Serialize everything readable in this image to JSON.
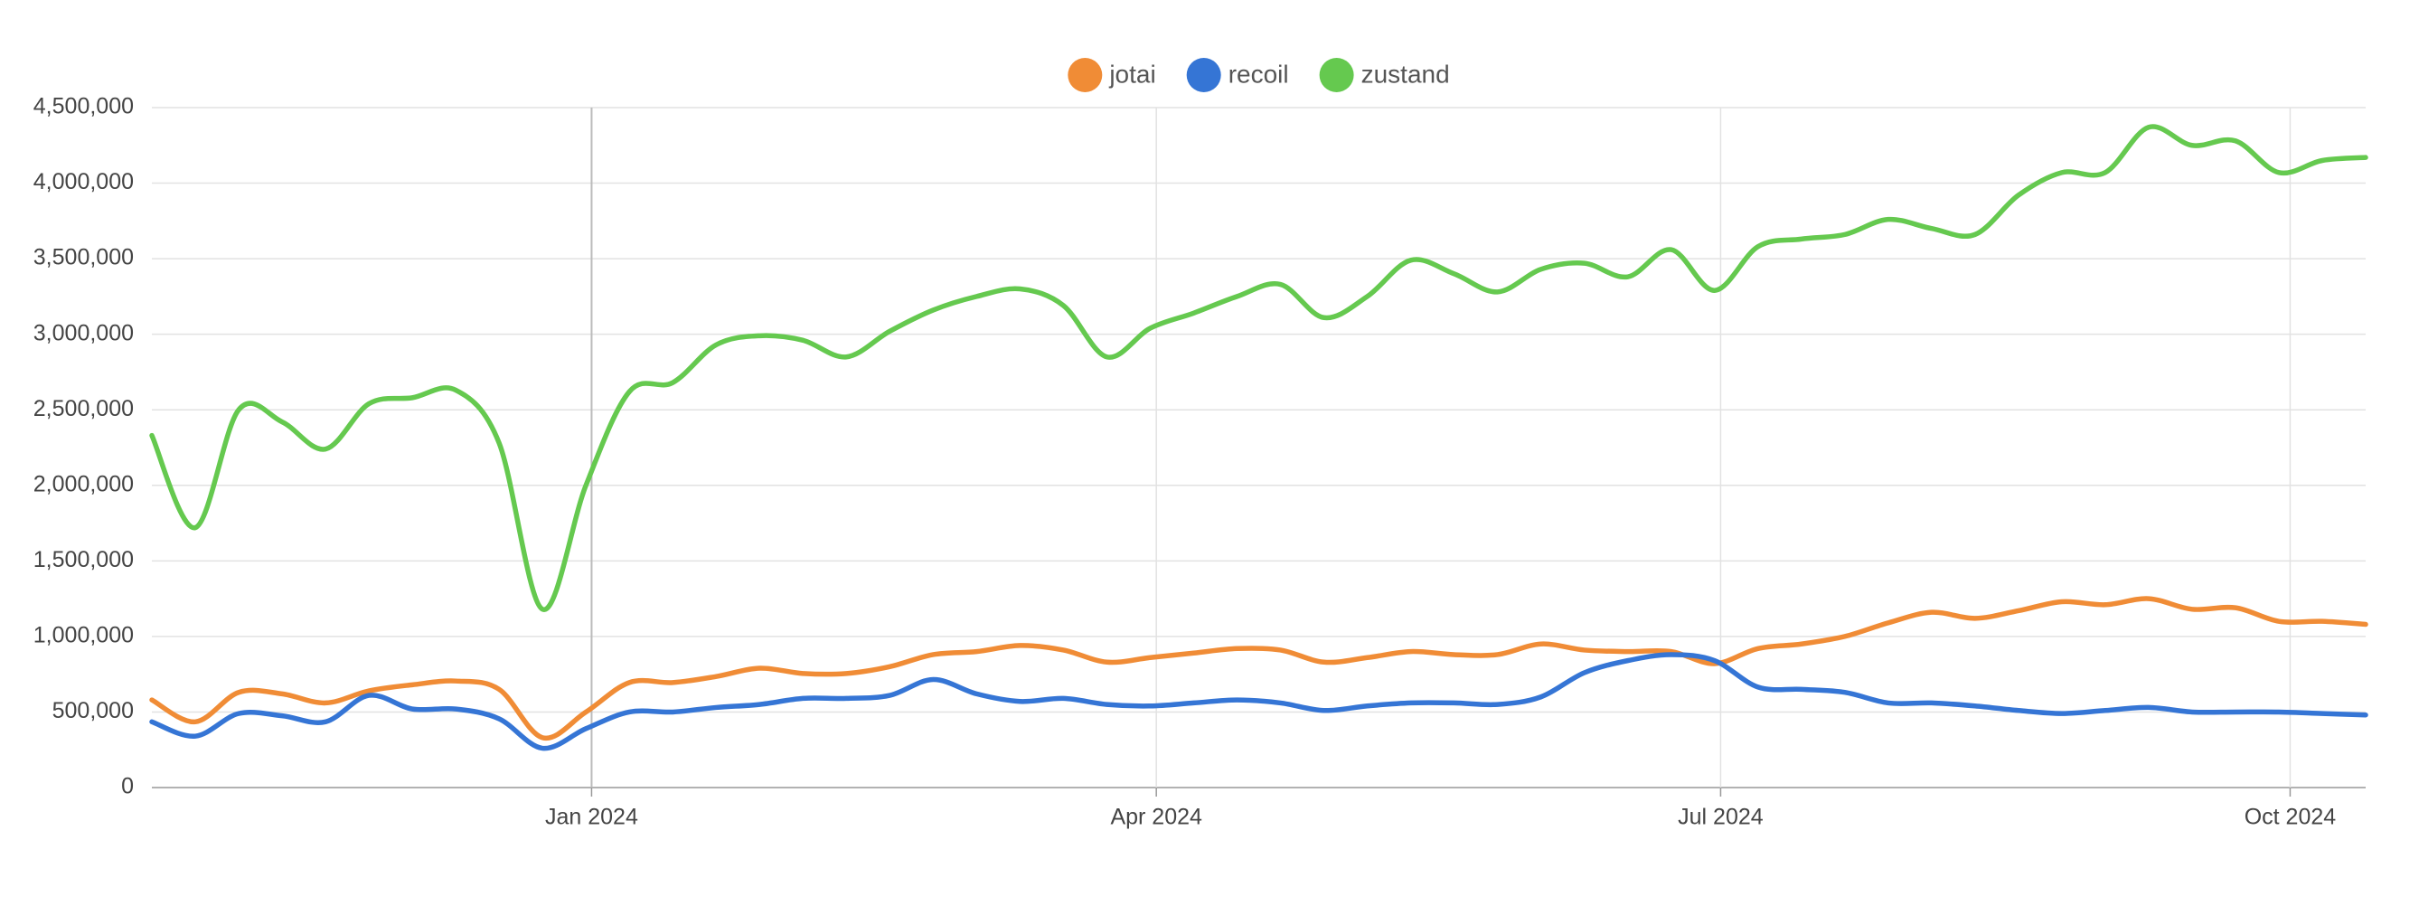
{
  "chart_data": {
    "type": "line",
    "x": [
      0,
      1,
      2,
      3,
      4,
      5,
      6,
      7,
      8,
      9,
      10,
      11,
      12,
      13,
      14,
      15,
      16,
      17,
      18,
      19,
      20,
      21,
      22,
      23,
      24,
      25,
      26,
      27,
      28,
      29,
      30,
      31,
      32,
      33,
      34,
      35,
      36,
      37,
      38,
      39,
      40,
      41,
      42,
      43,
      44,
      45,
      46,
      47,
      48,
      49,
      50,
      51
    ],
    "xlim": [
      0,
      51
    ],
    "xticks": [
      {
        "value": 10.13,
        "label": "Jan 2024"
      },
      {
        "value": 23.14,
        "label": "Apr 2024"
      },
      {
        "value": 36.14,
        "label": "Jul 2024"
      },
      {
        "value": 49.26,
        "label": "Oct 2024"
      }
    ],
    "ylim": [
      0,
      4500000
    ],
    "yticks": [
      0,
      {
        "value": 500000,
        "label": "500,000"
      },
      {
        "value": 1000000,
        "label": "1,000,000"
      },
      {
        "value": 1500000,
        "label": "1,500,000"
      },
      {
        "value": 2000000,
        "label": "2,000,000"
      },
      {
        "value": 2500000,
        "label": "2,500,000"
      },
      {
        "value": 3000000,
        "label": "3,000,000"
      },
      {
        "value": 3500000,
        "label": "3,500,000"
      },
      {
        "value": 4000000,
        "label": "4,000,000"
      },
      {
        "value": 4500000,
        "label": "4,500,000"
      }
    ],
    "grid": true,
    "legend": "top",
    "series": [
      {
        "name": "jotai",
        "color": "#f08c36",
        "values": [
          580000,
          435000,
          630000,
          620000,
          560000,
          640000,
          680000,
          705000,
          650000,
          330000,
          500000,
          695000,
          695000,
          735000,
          790000,
          755000,
          755000,
          800000,
          880000,
          900000,
          940000,
          910000,
          830000,
          860000,
          890000,
          920000,
          910000,
          830000,
          860000,
          900000,
          880000,
          880000,
          950000,
          910000,
          900000,
          900000,
          820000,
          920000,
          950000,
          1000000,
          1090000,
          1160000,
          1120000,
          1170000,
          1230000,
          1210000,
          1250000,
          1180000,
          1190000,
          1100000,
          1100000,
          1080000
        ]
      },
      {
        "name": "recoil",
        "color": "#3575d5",
        "values": [
          435000,
          340000,
          490000,
          475000,
          435000,
          610000,
          520000,
          520000,
          455000,
          260000,
          390000,
          500000,
          500000,
          530000,
          550000,
          590000,
          590000,
          610000,
          715000,
          620000,
          570000,
          590000,
          550000,
          540000,
          560000,
          580000,
          560000,
          510000,
          540000,
          560000,
          560000,
          550000,
          600000,
          760000,
          840000,
          880000,
          840000,
          665000,
          650000,
          630000,
          560000,
          560000,
          540000,
          510000,
          490000,
          510000,
          530000,
          500000,
          500000,
          500000,
          490000,
          480000
        ]
      },
      {
        "name": "zustand",
        "color": "#65c94f",
        "values": [
          2330000,
          1720000,
          2500000,
          2420000,
          2240000,
          2540000,
          2580000,
          2630000,
          2280000,
          1180000,
          2000000,
          2620000,
          2680000,
          2930000,
          2990000,
          2960000,
          2850000,
          3020000,
          3160000,
          3250000,
          3300000,
          3190000,
          2850000,
          3040000,
          3140000,
          3250000,
          3330000,
          3110000,
          3250000,
          3490000,
          3400000,
          3280000,
          3430000,
          3470000,
          3380000,
          3560000,
          3290000,
          3580000,
          3630000,
          3660000,
          3760000,
          3700000,
          3660000,
          3920000,
          4070000,
          4070000,
          4370000,
          4250000,
          4280000,
          4070000,
          4150000,
          4170000
        ]
      }
    ]
  }
}
